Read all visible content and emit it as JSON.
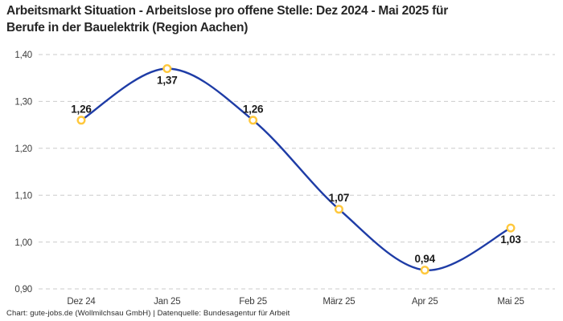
{
  "title": {
    "line1": "Arbeitsmarkt Situation - Arbeitslose pro offene Stelle: Dez 2024 - Mai 2025 für",
    "line2": "Berufe in der Bauelektrik (Region Aachen)"
  },
  "footer": {
    "text": "Chart: gute-jobs.de (Wollmilchsau GmbH) | Datenquelle: Bundesagentur für Arbeit"
  },
  "chart_data": {
    "type": "line",
    "title": "Arbeitsmarkt Situation - Arbeitslose pro offene Stelle: Dez 2024 - Mai 2025 für Berufe in der Bauelektrik (Region Aachen)",
    "categories": [
      "Dez 24",
      "Jan 25",
      "Feb 25",
      "März 25",
      "Apr 25",
      "Mai 25"
    ],
    "values": [
      1.26,
      1.37,
      1.26,
      1.07,
      0.94,
      1.03
    ],
    "value_labels": [
      "1,26",
      "1,37",
      "1,26",
      "1,07",
      "0,94",
      "1,03"
    ],
    "yticks": [
      1.4,
      1.3,
      1.2,
      1.1,
      1.0,
      0.9
    ],
    "ytick_labels": [
      "1,40",
      "1,30",
      "1,20",
      "1,10",
      "1,00",
      "0,90"
    ],
    "ylim": [
      0.9,
      1.4
    ],
    "xlabel": "",
    "ylabel": "",
    "grid": "horizontal-dashed",
    "legend_position": "none",
    "colors": {
      "line": "#1e3ca6",
      "marker_ring": "#ffc83c",
      "marker_fill": "#ffffff",
      "grid": "#cbcbcb",
      "tick_text": "#3c3c3c",
      "point_label_text": "#1a1a1a"
    }
  }
}
